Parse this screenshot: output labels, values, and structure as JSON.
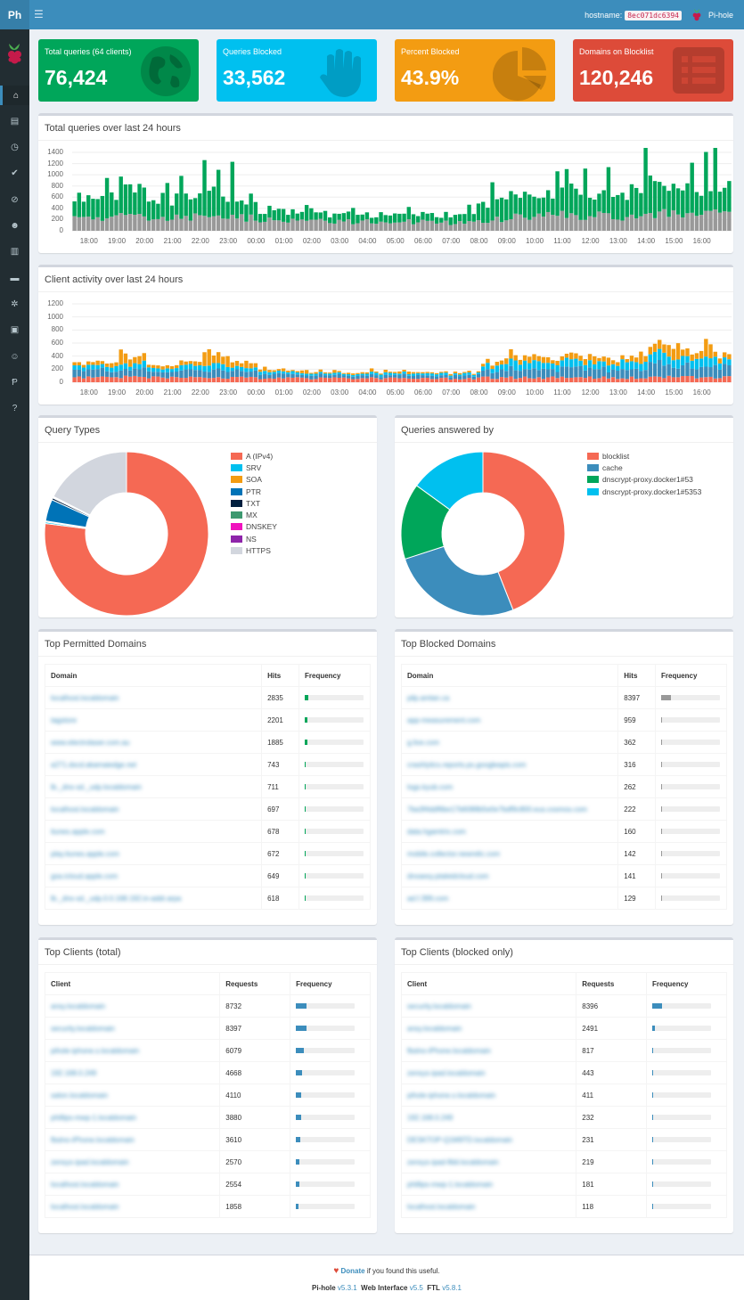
{
  "app": {
    "logo_text": "Ph",
    "hostname_label": "hostname:",
    "hostname": "8ec071dc6394",
    "user": "Pi-hole"
  },
  "colors": {
    "green": "#00a65a",
    "aqua": "#00c0ef",
    "yellow": "#f39c12",
    "red": "#dd4b39",
    "blue": "#3c8dbc",
    "grey": "#999999"
  },
  "sidebar": {
    "items": [
      {
        "icon": "home-icon",
        "active": true
      },
      {
        "icon": "file-icon"
      },
      {
        "icon": "clock-icon"
      },
      {
        "icon": "check-circle-icon"
      },
      {
        "icon": "ban-icon"
      },
      {
        "icon": "users-cog-icon"
      },
      {
        "icon": "database-icon"
      },
      {
        "icon": "folder-icon"
      },
      {
        "icon": "cogs-icon"
      },
      {
        "icon": "address-book-icon"
      },
      {
        "icon": "user-cog-icon"
      },
      {
        "icon": "paypal-icon"
      },
      {
        "icon": "question-icon"
      }
    ]
  },
  "tiles": [
    {
      "label": "Total queries (64 clients)",
      "value": "76,424",
      "icon": "globe-icon"
    },
    {
      "label": "Queries Blocked",
      "value": "33,562",
      "icon": "hand-icon"
    },
    {
      "label": "Percent Blocked",
      "value": "43.9%",
      "icon": "pie-chart-icon"
    },
    {
      "label": "Domains on Blocklist",
      "value": "120,246",
      "icon": "list-icon"
    }
  ],
  "panels": {
    "queries_over_time": "Total queries over last 24 hours",
    "client_activity": "Client activity over last 24 hours",
    "query_types": "Query Types",
    "answered_by": "Queries answered by",
    "top_permitted": "Top Permitted Domains",
    "top_blocked": "Top Blocked Domains",
    "top_clients": "Top Clients (total)",
    "top_clients_blocked": "Top Clients (blocked only)"
  },
  "chart_data": [
    {
      "type": "bar",
      "stacked": true,
      "x": [
        "18:00",
        "19:00",
        "20:00",
        "21:00",
        "22:00",
        "23:00",
        "00:00",
        "01:00",
        "02:00",
        "03:00",
        "04:00",
        "05:00",
        "06:00",
        "07:00",
        "08:00",
        "09:00",
        "10:00",
        "11:00",
        "12:00",
        "13:00",
        "14:00",
        "15:00",
        "16:00"
      ],
      "ylim": [
        0,
        1400
      ],
      "yticks": [
        0,
        200,
        400,
        600,
        800,
        1000,
        1200,
        1400
      ],
      "series": [
        {
          "values": [
            210,
            230,
            260,
            220,
            240,
            250,
            230,
            200,
            180,
            170,
            160,
            150,
            160,
            140,
            150,
            200,
            270,
            280,
            260,
            270,
            250,
            300,
            320
          ]
        },
        {
          "values": [
            300,
            380,
            450,
            340,
            360,
            420,
            330,
            190,
            150,
            140,
            120,
            130,
            130,
            120,
            150,
            380,
            420,
            390,
            420,
            380,
            430,
            580,
            460
          ]
        }
      ]
    },
    {
      "type": "bar",
      "stacked": true,
      "x": [
        "18:00",
        "19:00",
        "20:00",
        "21:00",
        "22:00",
        "23:00",
        "00:00",
        "01:00",
        "02:00",
        "03:00",
        "04:00",
        "05:00",
        "06:00",
        "07:00",
        "08:00",
        "09:00",
        "10:00",
        "11:00",
        "12:00",
        "13:00",
        "14:00",
        "15:00",
        "16:00"
      ],
      "ylim": [
        0,
        1200
      ],
      "yticks": [
        0,
        200,
        400,
        600,
        800,
        1000,
        1200
      ],
      "series": [
        {
          "values": [
            70,
            70,
            80,
            70,
            70,
            70,
            70,
            60,
            60,
            60,
            60,
            60,
            60,
            60,
            60,
            70,
            70,
            70,
            70,
            70,
            70,
            80,
            80
          ]
        },
        {
          "values": [
            90,
            110,
            130,
            100,
            110,
            120,
            100,
            60,
            50,
            50,
            40,
            40,
            50,
            40,
            50,
            110,
            140,
            130,
            140,
            120,
            130,
            200,
            160
          ]
        },
        {
          "values": [
            60,
            70,
            80,
            60,
            70,
            80,
            60,
            40,
            35,
            30,
            30,
            30,
            30,
            30,
            30,
            90,
            120,
            110,
            110,
            100,
            120,
            160,
            130
          ]
        },
        {
          "values": [
            40,
            60,
            120,
            50,
            60,
            110,
            70,
            30,
            20,
            20,
            20,
            20,
            20,
            20,
            20,
            50,
            80,
            70,
            80,
            60,
            70,
            150,
            100
          ]
        }
      ]
    },
    {
      "type": "pie",
      "title": "Query Types",
      "labels": [
        "A (IPv4)",
        "SRV",
        "SOA",
        "PTR",
        "TXT",
        "MX",
        "DNSKEY",
        "NS",
        "HTTPS"
      ],
      "values": [
        77.0,
        0.3,
        0.2,
        4.3,
        0.4,
        0.1,
        0.1,
        0.1,
        17.5
      ],
      "colors": [
        "#f56954",
        "#00c0ef",
        "#f39c12",
        "#0073b7",
        "#001f3f",
        "#3d9970",
        "#f012be",
        "#8e24aa",
        "#d2d6de"
      ]
    },
    {
      "type": "pie",
      "title": "Queries answered by",
      "labels": [
        "blocklist",
        "cache",
        "dnscrypt-proxy.docker1#53",
        "dnscrypt-proxy.docker1#5353"
      ],
      "values": [
        44,
        26,
        15,
        15
      ],
      "colors": [
        "#f56954",
        "#3c8dbc",
        "#00a65a",
        "#00c0ef"
      ]
    }
  ],
  "tables": {
    "permitted": {
      "headers": [
        "Domain",
        "Hits",
        "Frequency"
      ],
      "rows": [
        {
          "domain": "localhost.localdomain",
          "hits": "2835",
          "pct": 3.7
        },
        {
          "domain": "tagstore",
          "hits": "2201",
          "pct": 2.9
        },
        {
          "domain": "www.electrolaser.com.au",
          "hits": "1885",
          "pct": 2.5
        },
        {
          "domain": "a271.dscd.akamaiedge.net",
          "hits": "743",
          "pct": 1.0
        },
        {
          "domain": "lb._dns-sd._udp.localdomain",
          "hits": "711",
          "pct": 0.9
        },
        {
          "domain": "localhost.localdomain",
          "hits": "697",
          "pct": 0.9
        },
        {
          "domain": "itunes.apple.com",
          "hits": "678",
          "pct": 0.9
        },
        {
          "domain": "play.itunes.apple.com",
          "hits": "672",
          "pct": 0.9
        },
        {
          "domain": "gsa.icloud.apple.com",
          "hits": "649",
          "pct": 0.8
        },
        {
          "domain": "lb._dns-sd._udp.0.0.168.192.in-addr.arpa",
          "hits": "618",
          "pct": 0.8
        }
      ]
    },
    "blocked": {
      "headers": [
        "Domain",
        "Hits",
        "Frequency"
      ],
      "rows": [
        {
          "domain": "pilp.amlan.ca",
          "hits": "8397",
          "pct": 25
        },
        {
          "domain": "app-measurement.com",
          "hits": "959",
          "pct": 2.9
        },
        {
          "domain": "g.live.com",
          "hits": "362",
          "pct": 1.1
        },
        {
          "domain": "crashlytics.reports.ps.googleapis.com",
          "hits": "316",
          "pct": 0.9
        },
        {
          "domain": "logs.kyub.com",
          "hits": "262",
          "pct": 0.8
        },
        {
          "domain": "7ba3f4ddf6be17b6088b5e0e7bdf9c800.eus.cosmos.com",
          "hits": "222",
          "pct": 0.7
        },
        {
          "domain": "data.hgamtrix.com",
          "hits": "160",
          "pct": 0.5
        },
        {
          "domain": "mobile.collector.newrelic.com",
          "hits": "142",
          "pct": 0.4
        },
        {
          "domain": "dnxaesy.ptaleidcloud.com",
          "hits": "141",
          "pct": 0.4
        },
        {
          "domain": "ad.f.399.com",
          "hits": "129",
          "pct": 0.4
        }
      ]
    },
    "clients": {
      "headers": [
        "Client",
        "Requests",
        "Frequency"
      ],
      "rows": [
        {
          "client": "ansy.localdomain",
          "value": "8732",
          "pct": 11.4
        },
        {
          "client": "security.localdomain",
          "value": "8397",
          "pct": 11.0
        },
        {
          "client": "pihole-iphone.s.localdomain",
          "value": "6079",
          "pct": 8.0
        },
        {
          "client": "192.168.0.249",
          "value": "4668",
          "pct": 6.1
        },
        {
          "client": "salon.localdomain",
          "value": "4110",
          "pct": 5.4
        },
        {
          "client": "phillips-mwp-1.localdomain",
          "value": "3880",
          "pct": 5.1
        },
        {
          "client": "fbslno-iPhone.localdomain",
          "value": "3610",
          "pct": 4.7
        },
        {
          "client": "zensys-ipad.localdomain",
          "value": "2570",
          "pct": 3.4
        },
        {
          "client": "localhost.localdomain",
          "value": "2554",
          "pct": 3.3
        },
        {
          "client": "localhost.localdomain",
          "value": "1858",
          "pct": 2.4
        }
      ]
    },
    "clients_blocked": {
      "headers": [
        "Client",
        "Requests",
        "Frequency"
      ],
      "rows": [
        {
          "client": "security.localdomain",
          "value": "8396",
          "pct": 25
        },
        {
          "client": "ansy.localdomain",
          "value": "2491",
          "pct": 7.4
        },
        {
          "client": "fbslno-iPhone.localdomain",
          "value": "817",
          "pct": 2.4
        },
        {
          "client": "zensys-ipad.localdomain",
          "value": "443",
          "pct": 1.3
        },
        {
          "client": "pihole-iphone.s.localdomain",
          "value": "411",
          "pct": 1.2
        },
        {
          "client": "192.168.0.249",
          "value": "232",
          "pct": 0.7
        },
        {
          "client": "DESKTOP-Q1M9TD.localdomain",
          "value": "231",
          "pct": 0.7
        },
        {
          "client": "zensys-ipad-fkbl.localdomain",
          "value": "219",
          "pct": 0.7
        },
        {
          "client": "phillips-mwp-1.localdomain",
          "value": "181",
          "pct": 0.5
        },
        {
          "client": "localhost.localdomain",
          "value": "118",
          "pct": 0.4
        }
      ]
    }
  },
  "footer": {
    "heart": "♥",
    "donate": "Donate",
    "donate_suffix": " if you found this useful.",
    "pihole_label": "Pi-hole",
    "pihole_version": "v5.3.1",
    "web_label": "Web Interface",
    "web_version": "v5.5",
    "ftl_label": "FTL",
    "ftl_version": "v5.8.1"
  }
}
